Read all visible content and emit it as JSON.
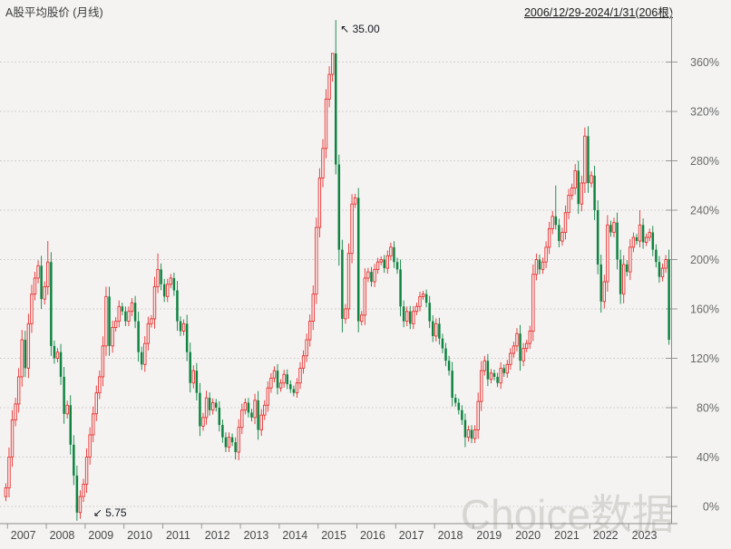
{
  "header": {
    "title": "A股平均股价 (月线)",
    "date_range": "2006/12/29-2024/1/31(206根)"
  },
  "watermark": "Choice数据",
  "colors": {
    "background": "#f4f3f2",
    "up": "#e8312f",
    "down": "#0e8441",
    "grid": "#c9c7c4",
    "axis": "#8f8d8a",
    "tick": "#9a9896",
    "axis_label": "#6a6a6a",
    "year_label": "#4a4a4a",
    "title": "#3a3a3a",
    "annotation": "#17171f",
    "watermark": "#d8d6d3"
  },
  "y_axis": {
    "unit": "%",
    "values": [
      360,
      320,
      280,
      240,
      200,
      160,
      120,
      80,
      40,
      0
    ],
    "labels": [
      "360%",
      "320%",
      "280%",
      "240%",
      "200%",
      "160%",
      "120%",
      "80%",
      "40%",
      "0%"
    ]
  },
  "x_axis": {
    "years": [
      "2007",
      "2008",
      "2009",
      "2010",
      "2011",
      "2012",
      "2013",
      "2014",
      "2015",
      "2016",
      "2017",
      "2018",
      "2019",
      "2020",
      "2021",
      "2022",
      "2023"
    ]
  },
  "annotations": [
    {
      "id": "high-marker",
      "arrow": "↖",
      "label": "35.00",
      "bar_index": 102,
      "value": 394
    },
    {
      "id": "low-marker",
      "arrow": "↙",
      "label": "5.75",
      "bar_index": 22,
      "value": -11.6
    }
  ],
  "chart_data": {
    "type": "candlestick",
    "title": "A股平均股价 (月线)",
    "frequency": "monthly",
    "start": "2006-12",
    "end": "2024-01",
    "bars": 206,
    "unit": "percent",
    "ylim": [
      -20,
      400
    ],
    "grid": "dotted-horizontal",
    "first_open": 8,
    "closes": [
      15,
      40,
      70,
      83,
      105,
      135,
      112,
      148,
      172,
      185,
      195,
      168,
      178,
      198,
      130,
      120,
      125,
      105,
      75,
      82,
      50,
      25,
      -5,
      8,
      18,
      40,
      58,
      75,
      92,
      105,
      130,
      170,
      130,
      145,
      150,
      162,
      158,
      150,
      158,
      165,
      150,
      125,
      115,
      132,
      148,
      152,
      178,
      192,
      180,
      170,
      180,
      185,
      175,
      150,
      142,
      148,
      125,
      100,
      110,
      92,
      65,
      72,
      88,
      78,
      84,
      80,
      66,
      56,
      48,
      56,
      52,
      44,
      64,
      78,
      84,
      76,
      72,
      86,
      62,
      74,
      82,
      96,
      104,
      110,
      96,
      100,
      107,
      99,
      95,
      92,
      100,
      112,
      122,
      135,
      150,
      172,
      226,
      266,
      290,
      330,
      350,
      367,
      277,
      208,
      152,
      160,
      205,
      245,
      250,
      150,
      155,
      185,
      190,
      182,
      192,
      198,
      200,
      193,
      203,
      210,
      198,
      192,
      162,
      150,
      158,
      148,
      158,
      162,
      170,
      172,
      165,
      150,
      138,
      148,
      136,
      128,
      118,
      110,
      88,
      84,
      78,
      70,
      56,
      62,
      55,
      62,
      85,
      110,
      118,
      103,
      108,
      105,
      100,
      112,
      108,
      115,
      124,
      130,
      140,
      118,
      128,
      132,
      142,
      188,
      200,
      192,
      198,
      210,
      225,
      235,
      228,
      215,
      222,
      238,
      252,
      258,
      272,
      245,
      262,
      300,
      262,
      268,
      240,
      196,
      166,
      182,
      228,
      222,
      230,
      200,
      172,
      196,
      190,
      210,
      218,
      215,
      228,
      214,
      218,
      222,
      208,
      198,
      186,
      193,
      200,
      135
    ],
    "high_overrides": {
      "13": 215,
      "47": 205,
      "101": 362,
      "102": 394,
      "170": 260,
      "179": 307,
      "196": 240
    },
    "low_overrides": {
      "22": -11.6,
      "71": 38,
      "78": 54,
      "103": 195,
      "104": 141,
      "109": 141,
      "142": 48,
      "159": 110,
      "184": 157,
      "205": 131
    }
  }
}
